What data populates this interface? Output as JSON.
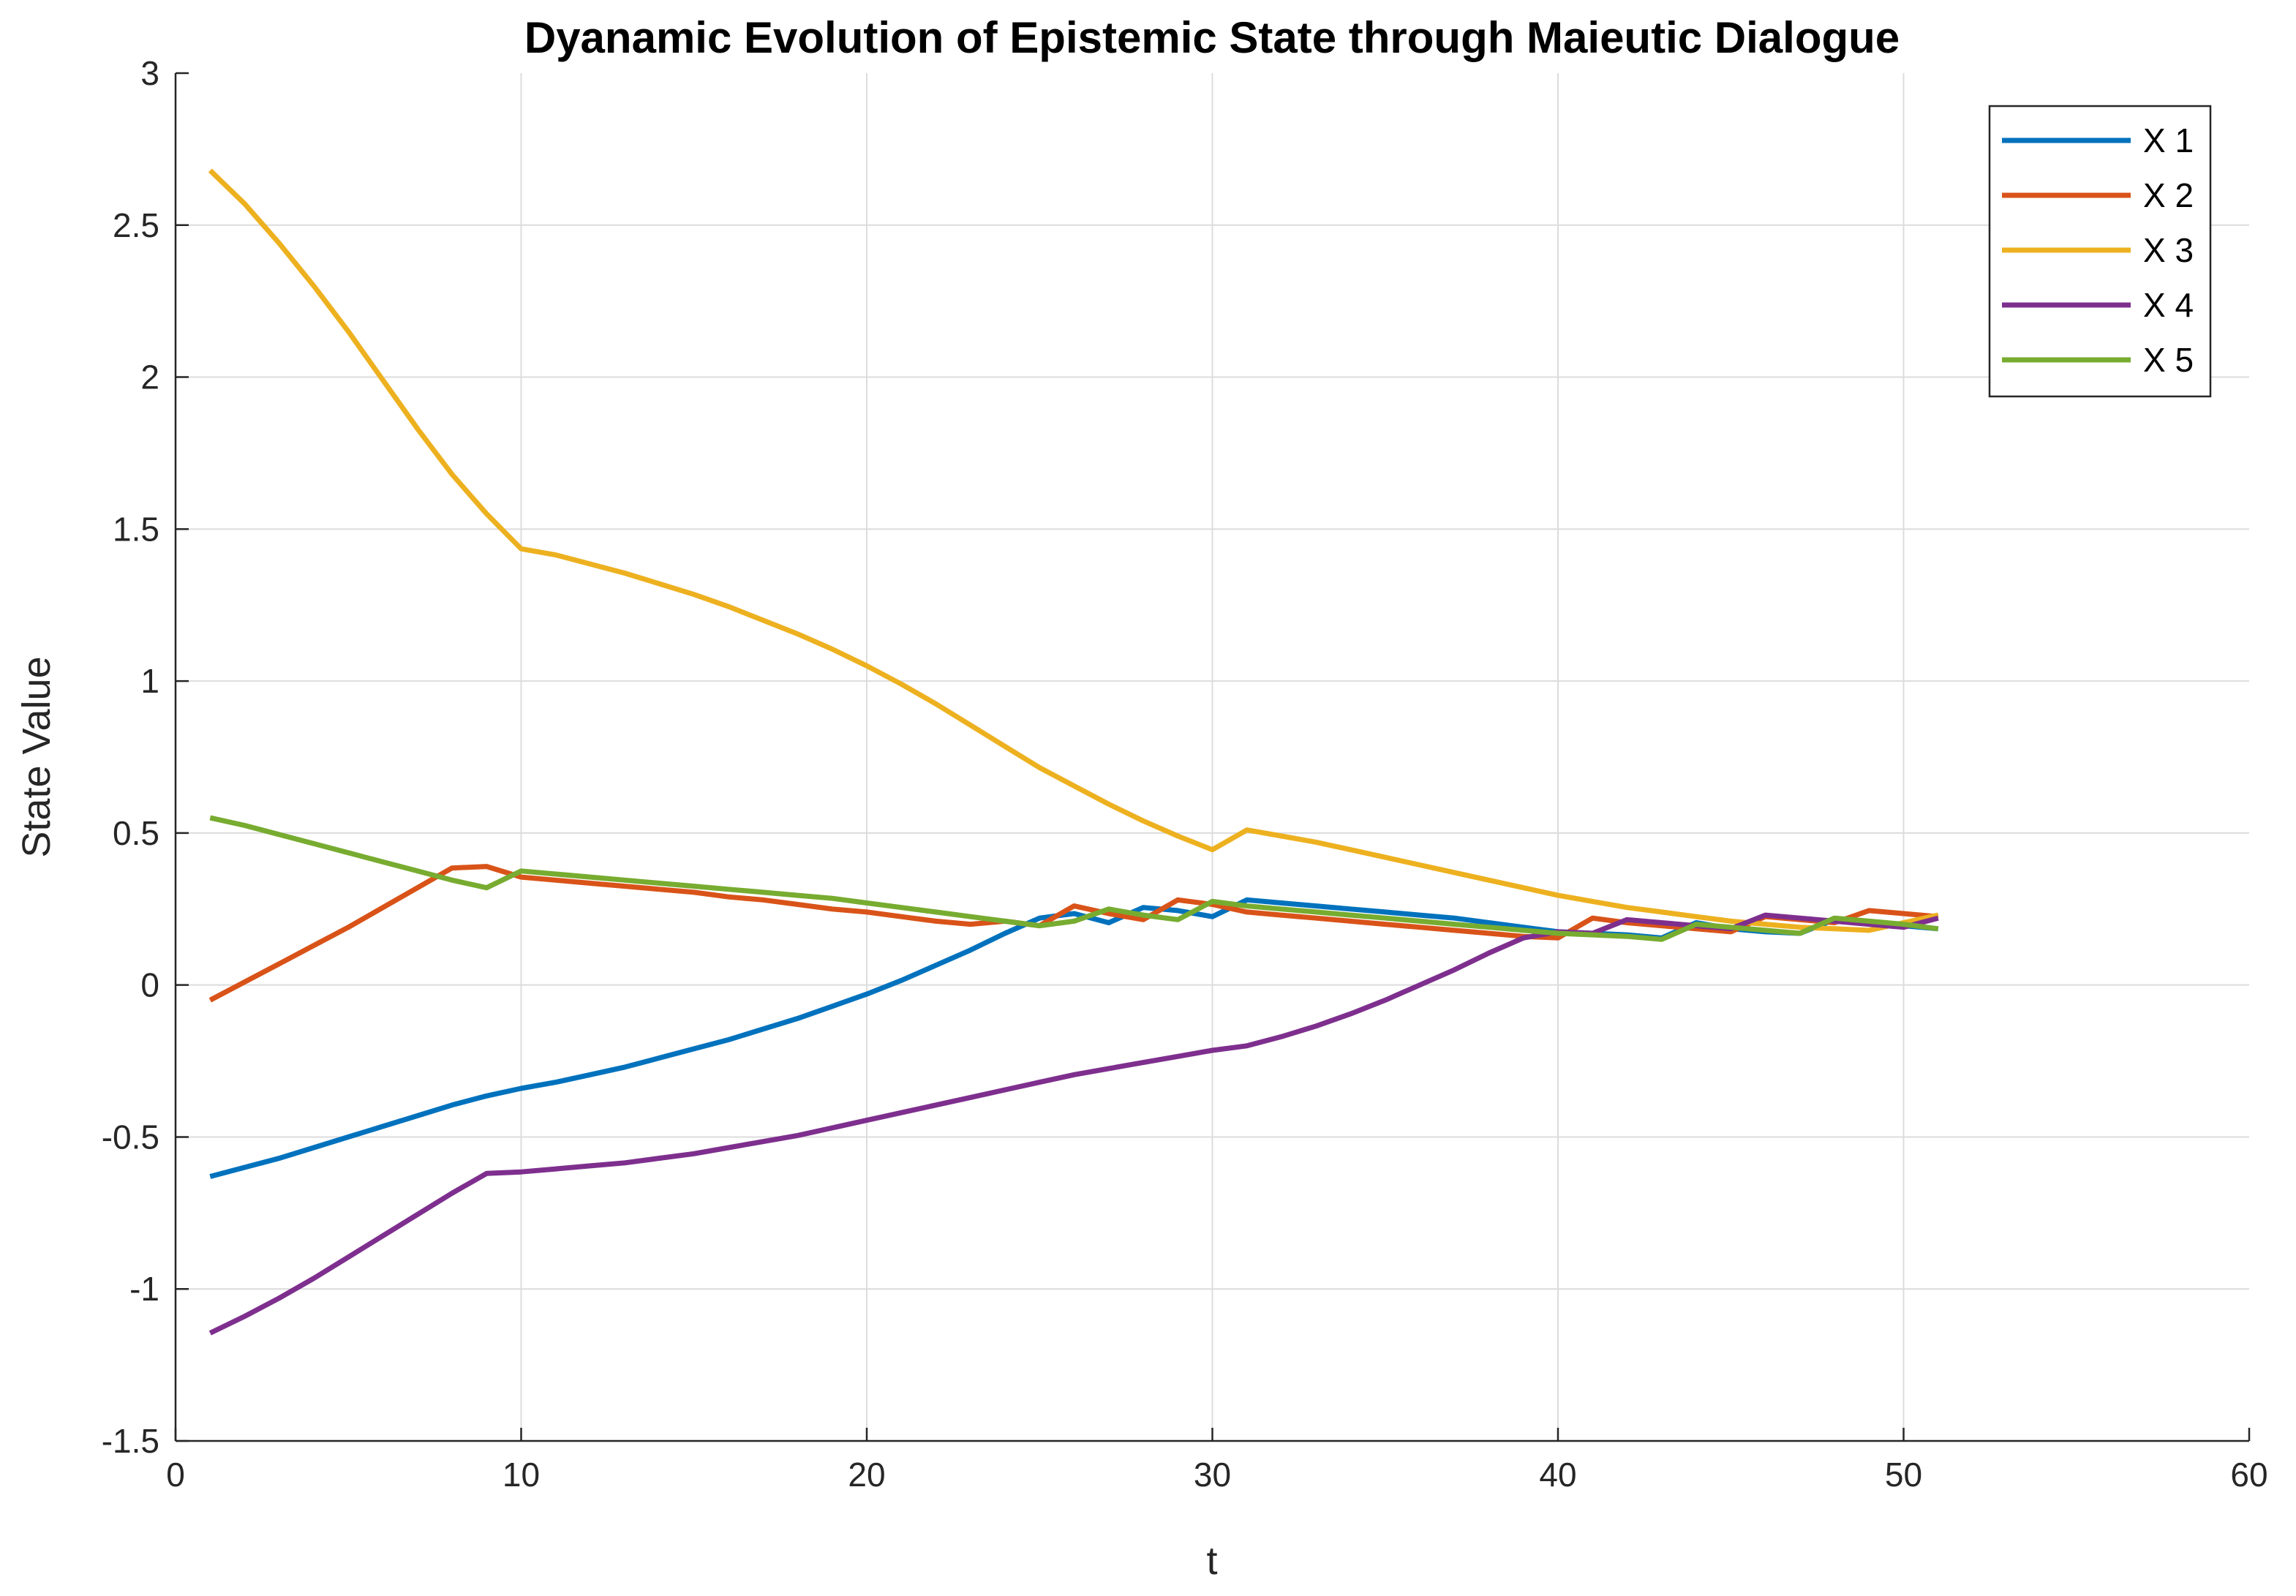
{
  "chart_data": {
    "type": "line",
    "title": "Dyanamic Evolution of Epistemic State through Maieutic Dialogue",
    "xlabel": "t",
    "ylabel": "State Value",
    "xlim": [
      0,
      60
    ],
    "ylim": [
      -1.5,
      3
    ],
    "xticks": [
      0,
      10,
      20,
      30,
      40,
      50,
      60
    ],
    "yticks": [
      -1.5,
      -1,
      -0.5,
      0,
      0.5,
      1,
      1.5,
      2,
      2.5,
      3
    ],
    "xtick_labels": [
      "0",
      "10",
      "20",
      "30",
      "40",
      "50",
      "60"
    ],
    "ytick_labels": [
      "-1.5",
      "-1",
      "-0.5",
      "0",
      "0.5",
      "1",
      "1.5",
      "2",
      "2.5",
      "3"
    ],
    "grid": true,
    "legend_position": "top-right",
    "x": [
      1,
      2,
      3,
      4,
      5,
      6,
      7,
      8,
      9,
      10,
      11,
      12,
      13,
      14,
      15,
      16,
      17,
      18,
      19,
      20,
      21,
      22,
      23,
      24,
      25,
      26,
      27,
      28,
      29,
      30,
      31,
      32,
      33,
      34,
      35,
      36,
      37,
      38,
      39,
      40,
      41,
      42,
      43,
      44,
      45,
      46,
      47,
      48,
      49,
      50,
      51
    ],
    "series": [
      {
        "name": "X 1",
        "color": "#0072BD",
        "values": [
          -0.63,
          -0.6,
          -0.57,
          -0.535,
          -0.5,
          -0.465,
          -0.43,
          -0.395,
          -0.365,
          -0.34,
          -0.32,
          -0.295,
          -0.27,
          -0.24,
          -0.21,
          -0.18,
          -0.145,
          -0.11,
          -0.07,
          -0.03,
          0.015,
          0.065,
          0.115,
          0.17,
          0.22,
          0.235,
          0.205,
          0.255,
          0.245,
          0.225,
          0.28,
          0.27,
          0.26,
          0.25,
          0.24,
          0.23,
          0.22,
          0.205,
          0.19,
          0.175,
          0.17,
          0.165,
          0.155,
          0.205,
          0.185,
          0.175,
          0.17,
          0.215,
          0.205,
          0.195,
          0.185
        ]
      },
      {
        "name": "X 2",
        "color": "#D95319",
        "values": [
          -0.05,
          0.01,
          0.07,
          0.13,
          0.19,
          0.255,
          0.32,
          0.385,
          0.39,
          0.355,
          0.345,
          0.335,
          0.325,
          0.315,
          0.305,
          0.29,
          0.28,
          0.265,
          0.25,
          0.24,
          0.225,
          0.21,
          0.2,
          0.21,
          0.195,
          0.26,
          0.235,
          0.215,
          0.28,
          0.265,
          0.24,
          0.23,
          0.22,
          0.21,
          0.2,
          0.19,
          0.18,
          0.17,
          0.16,
          0.155,
          0.22,
          0.205,
          0.195,
          0.185,
          0.175,
          0.225,
          0.215,
          0.205,
          0.245,
          0.235,
          0.225
        ]
      },
      {
        "name": "X 3",
        "color": "#EDB120",
        "values": [
          2.68,
          2.57,
          2.44,
          2.3,
          2.15,
          1.99,
          1.83,
          1.68,
          1.55,
          1.435,
          1.415,
          1.385,
          1.355,
          1.32,
          1.285,
          1.245,
          1.2,
          1.155,
          1.105,
          1.05,
          0.99,
          0.925,
          0.855,
          0.785,
          0.715,
          0.655,
          0.595,
          0.54,
          0.49,
          0.445,
          0.51,
          0.49,
          0.47,
          0.445,
          0.42,
          0.395,
          0.37,
          0.345,
          0.32,
          0.295,
          0.275,
          0.255,
          0.24,
          0.225,
          0.21,
          0.2,
          0.19,
          0.185,
          0.18,
          0.205,
          0.23
        ]
      },
      {
        "name": "X 4",
        "color": "#7E2F8E",
        "values": [
          -1.145,
          -1.09,
          -1.03,
          -0.965,
          -0.895,
          -0.825,
          -0.755,
          -0.685,
          -0.62,
          -0.615,
          -0.605,
          -0.595,
          -0.585,
          -0.57,
          -0.555,
          -0.535,
          -0.515,
          -0.495,
          -0.47,
          -0.445,
          -0.42,
          -0.395,
          -0.37,
          -0.345,
          -0.32,
          -0.295,
          -0.275,
          -0.255,
          -0.235,
          -0.215,
          -0.2,
          -0.17,
          -0.135,
          -0.095,
          -0.05,
          0.0,
          0.05,
          0.105,
          0.155,
          0.175,
          0.17,
          0.215,
          0.205,
          0.195,
          0.185,
          0.23,
          0.22,
          0.21,
          0.2,
          0.19,
          0.22
        ]
      },
      {
        "name": "X 5",
        "color": "#77AC30",
        "values": [
          0.55,
          0.525,
          0.495,
          0.465,
          0.435,
          0.405,
          0.375,
          0.345,
          0.32,
          0.375,
          0.365,
          0.355,
          0.345,
          0.335,
          0.325,
          0.315,
          0.305,
          0.295,
          0.285,
          0.27,
          0.255,
          0.24,
          0.225,
          0.21,
          0.195,
          0.21,
          0.25,
          0.23,
          0.215,
          0.275,
          0.26,
          0.25,
          0.24,
          0.23,
          0.22,
          0.21,
          0.2,
          0.19,
          0.18,
          0.17,
          0.165,
          0.16,
          0.15,
          0.2,
          0.19,
          0.18,
          0.17,
          0.22,
          0.21,
          0.2,
          0.185
        ]
      }
    ]
  }
}
